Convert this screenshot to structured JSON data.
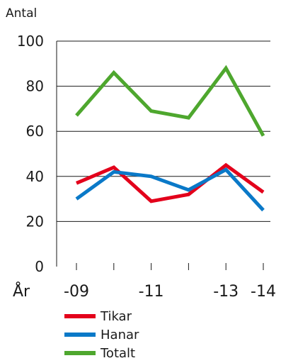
{
  "chart_data": {
    "type": "line",
    "ylabel": "Antal",
    "xlabel": "År",
    "ylim": [
      0,
      100
    ],
    "yticks": [
      0,
      20,
      40,
      60,
      80,
      100
    ],
    "x": [
      2009,
      2010,
      2011,
      2012,
      2013,
      2014
    ],
    "xtick_labels": [
      "-09",
      "",
      "-11",
      "",
      "-13",
      "-14"
    ],
    "grid": true,
    "legend_position": "bottom",
    "series": [
      {
        "name": "Tikar",
        "color": "#e3001b",
        "values": [
          37,
          44,
          29,
          32,
          45,
          33
        ]
      },
      {
        "name": "Hanar",
        "color": "#0a79c8",
        "values": [
          30,
          42,
          40,
          34,
          43,
          25
        ]
      },
      {
        "name": "Totalt",
        "color": "#4ea72e",
        "values": [
          67,
          86,
          69,
          66,
          88,
          58
        ]
      }
    ]
  }
}
